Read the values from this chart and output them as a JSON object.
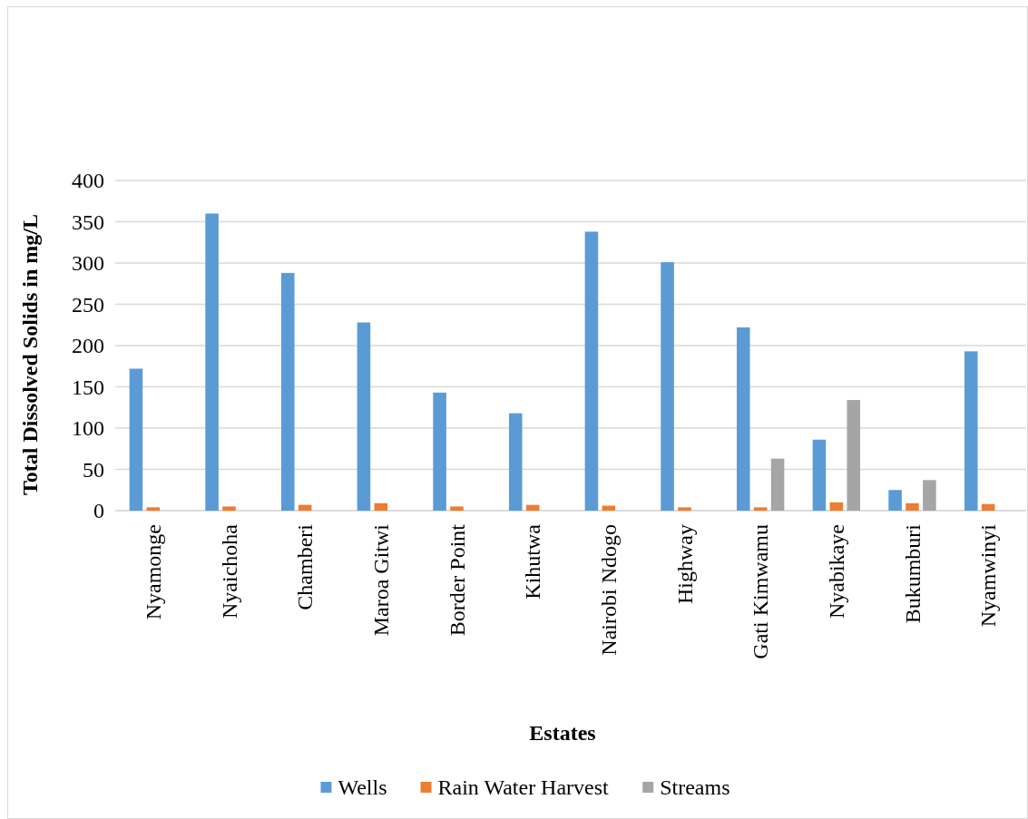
{
  "chart_data": {
    "type": "bar",
    "xlabel": "Estates",
    "ylabel": "Total Dissolved Solids in mg/L",
    "categories": [
      "Nyamonge",
      "Nyaichoha",
      "Chamberi",
      "Maroa Gitwi",
      "Border Point",
      "Kihutwa",
      "Nairobi Ndogo",
      "Highway",
      "Gati Kimwamu",
      "Nyabikaye",
      "Bukumburi",
      "Nyamwinyi"
    ],
    "series": [
      {
        "name": "Wells",
        "color": "#5b9bd5",
        "values": [
          172,
          360,
          288,
          228,
          143,
          118,
          338,
          301,
          222,
          86,
          25,
          193
        ]
      },
      {
        "name": "Rain Water Harvest",
        "color": "#ed7d31",
        "values": [
          4,
          5,
          7,
          9,
          5,
          7,
          6,
          4,
          4,
          10,
          9,
          8
        ]
      },
      {
        "name": "Streams",
        "color": "#a5a5a5",
        "values": [
          null,
          null,
          null,
          null,
          null,
          null,
          null,
          null,
          63,
          134,
          37,
          null
        ]
      }
    ],
    "ylim": [
      0,
      400
    ],
    "yticks": [
      0,
      50,
      100,
      150,
      200,
      250,
      300,
      350,
      400
    ],
    "grid": "y",
    "legend": "bottom"
  }
}
